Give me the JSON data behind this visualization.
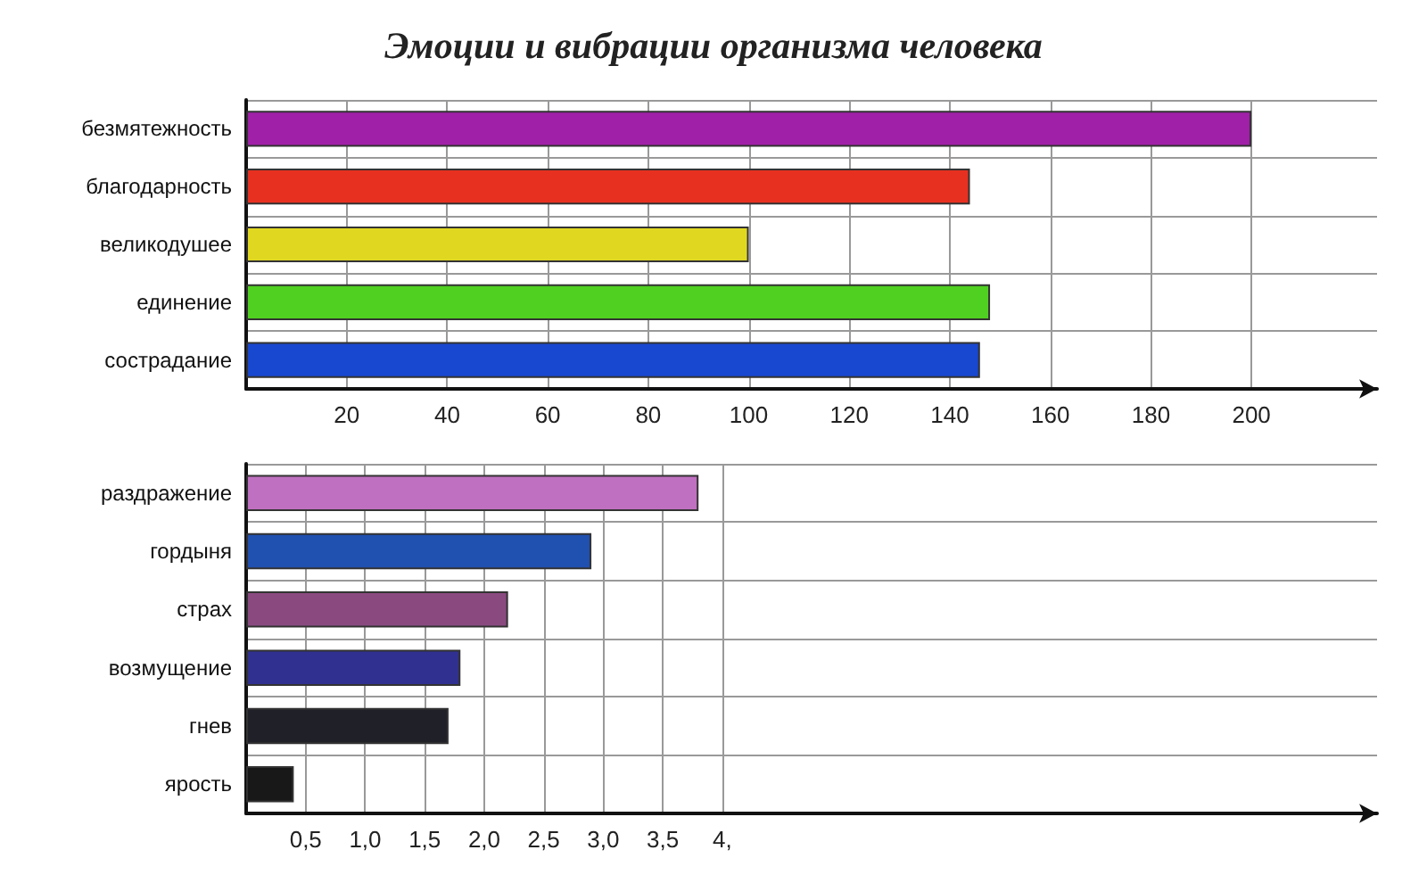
{
  "chart_data": [
    {
      "type": "bar",
      "orientation": "horizontal",
      "title": "Эмоции и вибрации организма человека",
      "categories": [
        "безмятежность",
        "благодарность",
        "великодушее",
        "единение",
        "сострадание"
      ],
      "values": [
        200,
        144,
        100,
        148,
        146
      ],
      "colors": [
        "#a020a8",
        "#e83020",
        "#e0d820",
        "#50d020",
        "#1848d0"
      ],
      "xlim": [
        0,
        225
      ],
      "xticks": [
        20,
        40,
        60,
        80,
        100,
        120,
        140,
        160,
        180,
        200
      ],
      "grid": true
    },
    {
      "type": "bar",
      "orientation": "horizontal",
      "categories": [
        "раздражение",
        "гордыня",
        "страх",
        "возмущение",
        "гнев",
        "ярость"
      ],
      "values": [
        3.8,
        2.9,
        2.2,
        1.8,
        1.7,
        0.4
      ],
      "colors": [
        "#c070c0",
        "#2050b0",
        "#8a4a80",
        "#303090",
        "#202028",
        "#181818"
      ],
      "xlim": [
        0,
        9.5
      ],
      "xticks": [
        {
          "value": 0.5,
          "label": "0,5"
        },
        {
          "value": 1,
          "label": "1,0"
        },
        {
          "value": 1.5,
          "label": "1,5"
        },
        {
          "value": 2,
          "label": "2,0"
        },
        {
          "value": 2.5,
          "label": "2,5"
        },
        {
          "value": 3,
          "label": "3,0"
        },
        {
          "value": 3.5,
          "label": "3,5"
        },
        {
          "value": 4,
          "label": "4,"
        }
      ],
      "grid": true
    }
  ]
}
